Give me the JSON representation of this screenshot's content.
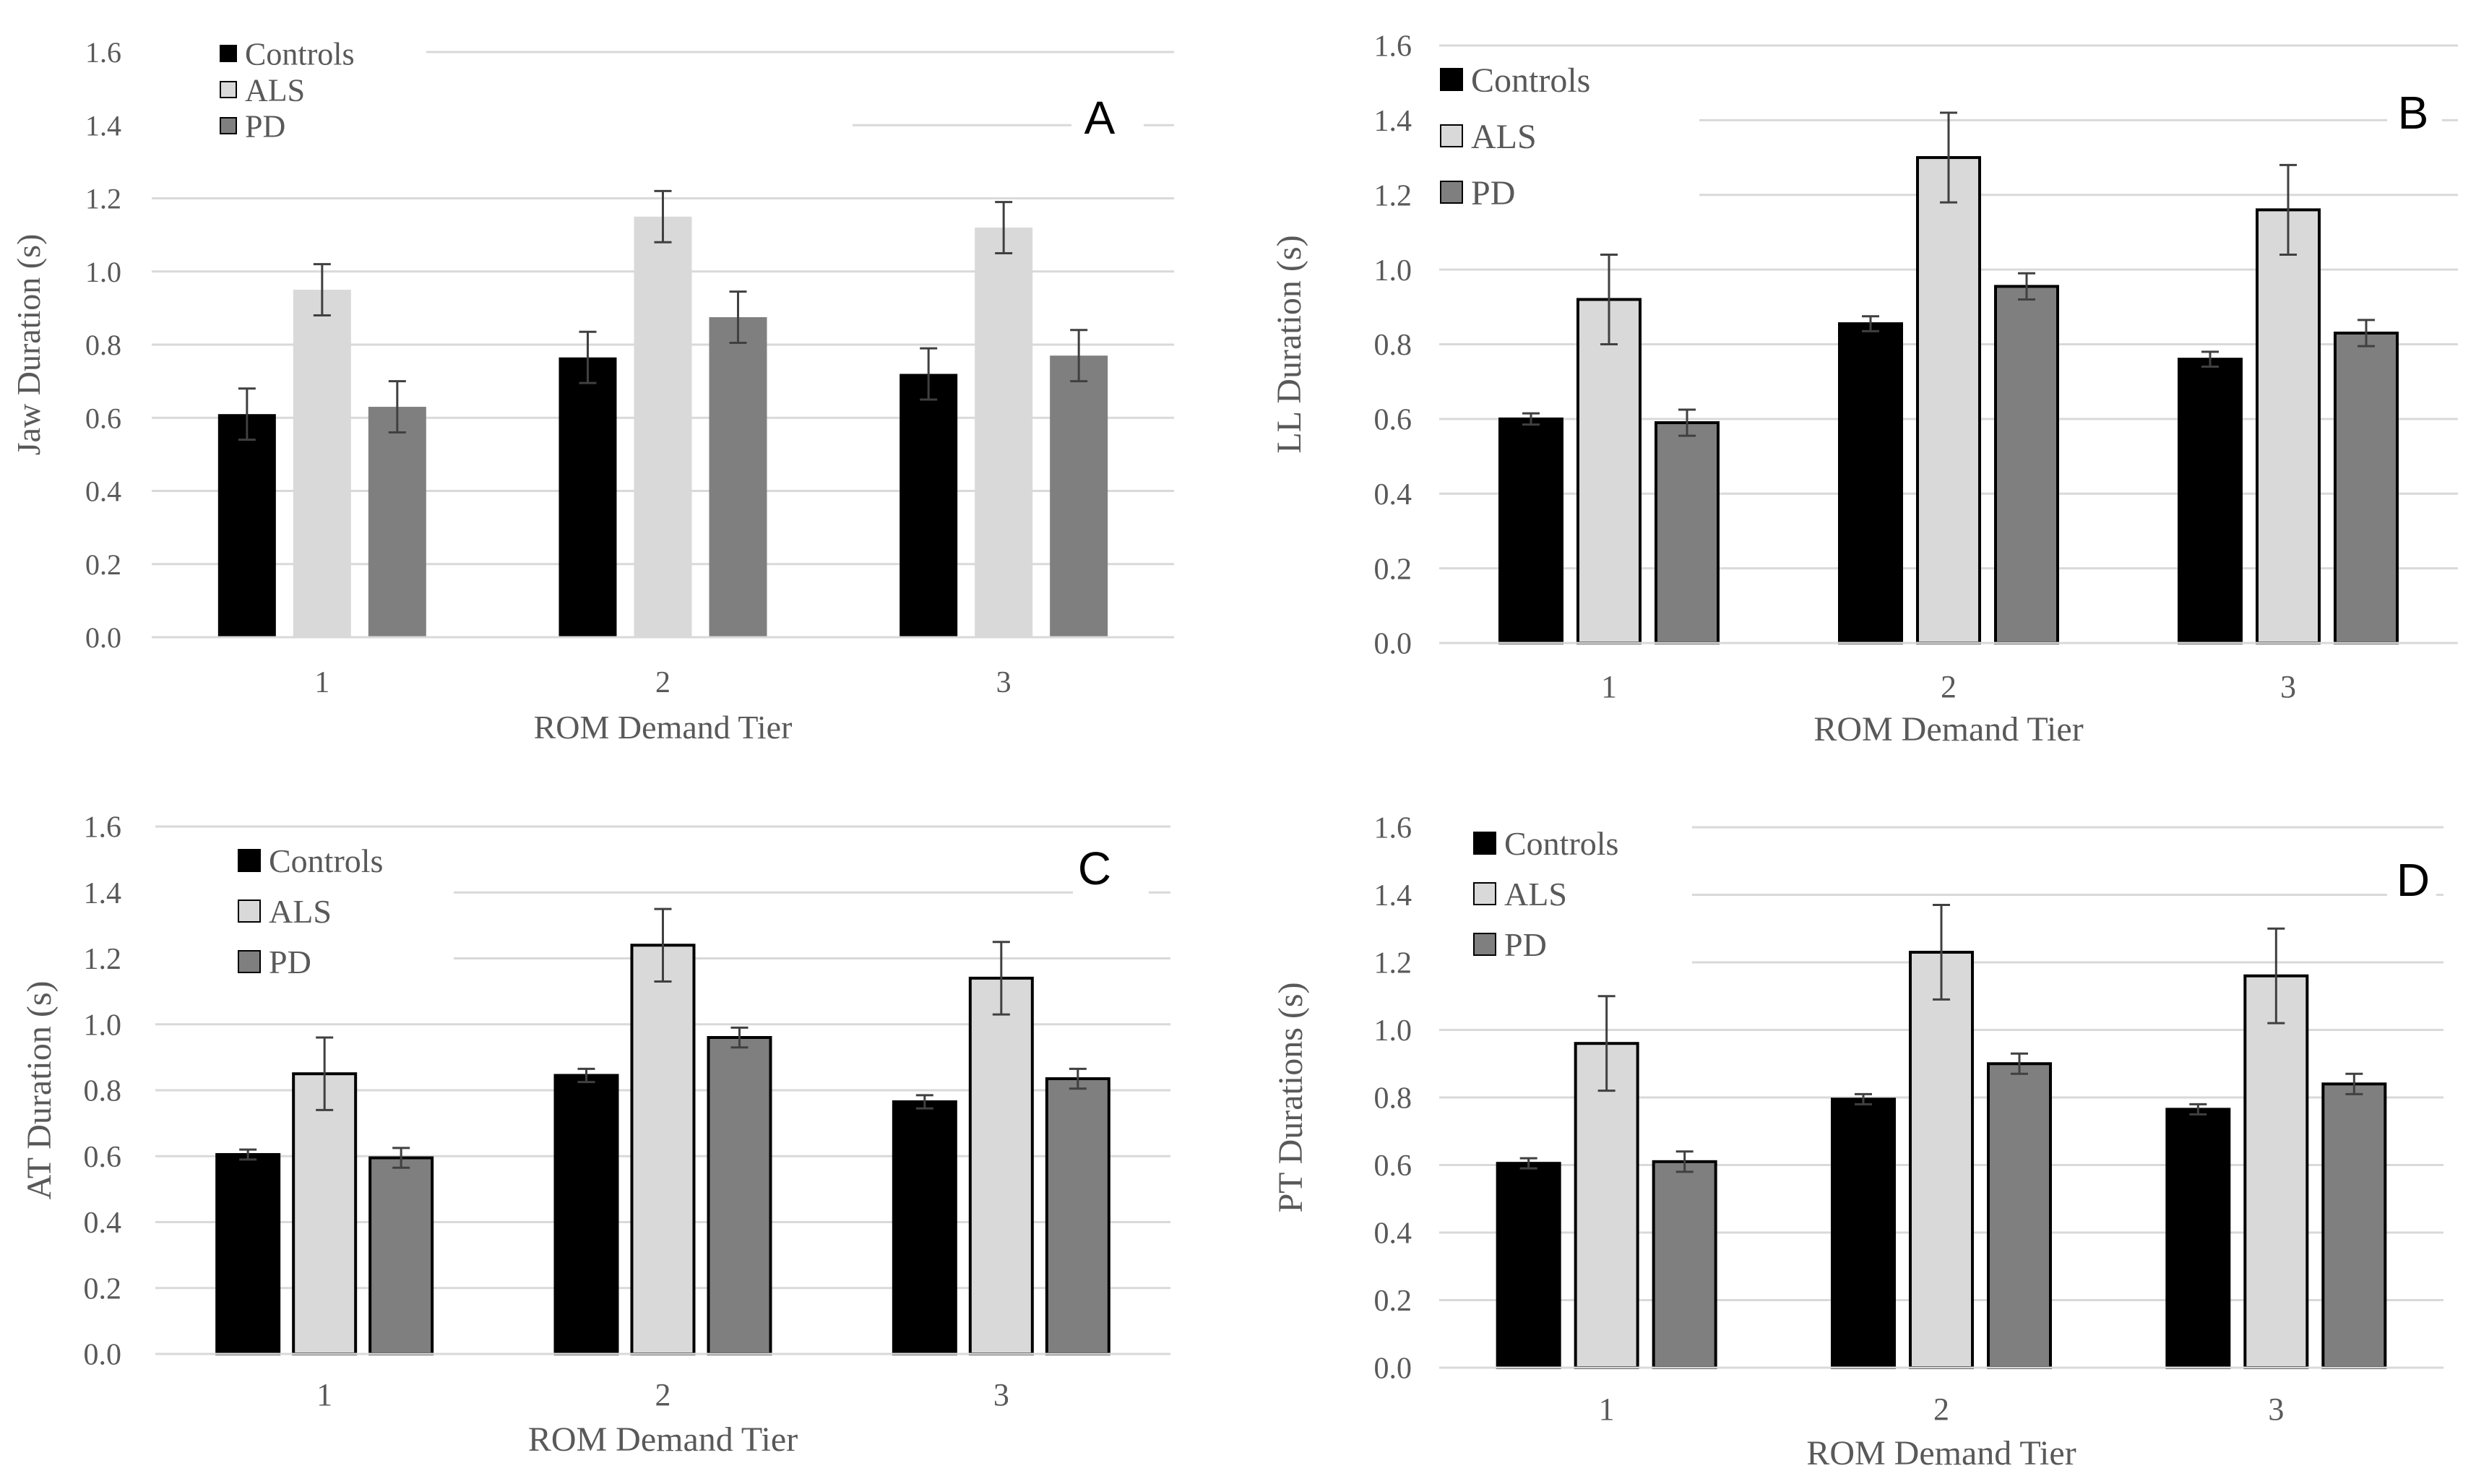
{
  "figure": {
    "colors": {
      "controls": "#000000",
      "als": "#d9d9d9",
      "pd": "#7f7f7f",
      "grid": "#d9d9d9",
      "text": "#595959"
    },
    "legend": [
      "Controls",
      "ALS",
      "PD"
    ]
  },
  "chart_data": [
    {
      "type": "bar",
      "panel": "A",
      "categories": [
        "1",
        "2",
        "3"
      ],
      "series": [
        {
          "name": "Controls",
          "values": [
            0.61,
            0.765,
            0.72
          ],
          "errors": [
            0.07,
            0.07,
            0.07
          ]
        },
        {
          "name": "ALS",
          "values": [
            0.95,
            1.15,
            1.12
          ],
          "errors": [
            0.07,
            0.07,
            0.07
          ]
        },
        {
          "name": "PD",
          "values": [
            0.63,
            0.875,
            0.77
          ],
          "errors": [
            0.07,
            0.07,
            0.07
          ]
        }
      ],
      "xlabel": "ROM Demand Tier",
      "ylabel": "Jaw Duration (s)",
      "ylim": [
        0,
        1.6
      ],
      "yticks": [
        "0.0",
        "0.2",
        "0.4",
        "0.6",
        "0.8",
        "1.0",
        "1.2",
        "1.4",
        "1.6"
      ],
      "legend_position": "top-left",
      "grid": true
    },
    {
      "type": "bar",
      "panel": "B",
      "categories": [
        "1",
        "2",
        "3"
      ],
      "series": [
        {
          "name": "Controls",
          "values": [
            0.6,
            0.855,
            0.76
          ],
          "errors": [
            0.015,
            0.02,
            0.02
          ]
        },
        {
          "name": "ALS",
          "values": [
            0.92,
            1.3,
            1.16
          ],
          "errors": [
            0.12,
            0.12,
            0.12
          ]
        },
        {
          "name": "PD",
          "values": [
            0.59,
            0.955,
            0.83
          ],
          "errors": [
            0.035,
            0.035,
            0.035
          ]
        }
      ],
      "xlabel": "ROM Demand Tier",
      "ylabel": "LL Duration (s)",
      "ylim": [
        0,
        1.6
      ],
      "yticks": [
        "0.0",
        "0.2",
        "0.4",
        "0.6",
        "0.8",
        "1.0",
        "1.2",
        "1.4",
        "1.6"
      ],
      "legend_position": "top-left",
      "grid": true
    },
    {
      "type": "bar",
      "panel": "C",
      "categories": [
        "1",
        "2",
        "3"
      ],
      "series": [
        {
          "name": "Controls",
          "values": [
            0.605,
            0.845,
            0.765
          ],
          "errors": [
            0.015,
            0.02,
            0.02
          ]
        },
        {
          "name": "ALS",
          "values": [
            0.85,
            1.24,
            1.14
          ],
          "errors": [
            0.11,
            0.11,
            0.11
          ]
        },
        {
          "name": "PD",
          "values": [
            0.595,
            0.96,
            0.835
          ],
          "errors": [
            0.03,
            0.03,
            0.03
          ]
        }
      ],
      "xlabel": "ROM Demand Tier",
      "ylabel": "AT Duration (s)",
      "ylim": [
        0,
        1.6
      ],
      "yticks": [
        "0.0",
        "0.2",
        "0.4",
        "0.6",
        "0.8",
        "1.0",
        "1.2",
        "1.4",
        "1.6"
      ],
      "legend_position": "top-left",
      "grid": true
    },
    {
      "type": "bar",
      "panel": "D",
      "categories": [
        "1",
        "2",
        "3"
      ],
      "series": [
        {
          "name": "Controls",
          "values": [
            0.605,
            0.795,
            0.765
          ],
          "errors": [
            0.015,
            0.015,
            0.015
          ]
        },
        {
          "name": "ALS",
          "values": [
            0.96,
            1.23,
            1.16
          ],
          "errors": [
            0.14,
            0.14,
            0.14
          ]
        },
        {
          "name": "PD",
          "values": [
            0.61,
            0.9,
            0.84
          ],
          "errors": [
            0.03,
            0.03,
            0.03
          ]
        }
      ],
      "xlabel": "ROM Demand Tier",
      "ylabel": "PT Durations (s)",
      "ylim": [
        0,
        1.6
      ],
      "yticks": [
        "0.0",
        "0.2",
        "0.4",
        "0.6",
        "0.8",
        "1.0",
        "1.2",
        "1.4",
        "1.6"
      ],
      "legend_position": "top-left",
      "grid": true
    }
  ]
}
